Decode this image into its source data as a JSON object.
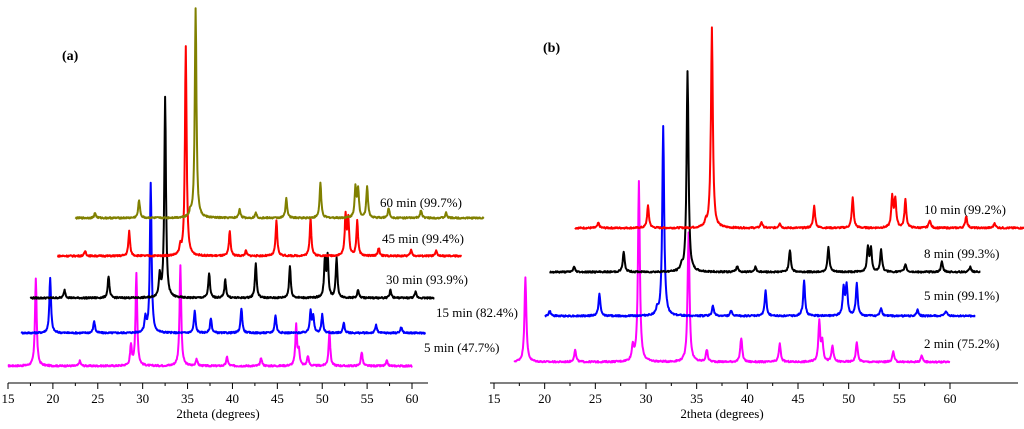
{
  "chart_data": [
    {
      "type": "line",
      "panel_label": "(a)",
      "xlabel": "2theta (degrees)",
      "ylabel": "",
      "xlim": [
        15,
        60
      ],
      "ticks": [
        15,
        20,
        25,
        30,
        35,
        40,
        45,
        50,
        55,
        60
      ],
      "tick_labels": [
        "15",
        "20",
        "25",
        "30",
        "35",
        "40",
        "45",
        "50",
        "55",
        "60"
      ],
      "series": [
        {
          "name": "5 min (47.7%)",
          "label": "5 min (47.7%)",
          "color": "#ff00ff",
          "x_start": 15,
          "x_end": 60,
          "x_shift": 0,
          "y_offset": 0,
          "peaks": [
            [
              18.1,
              88
            ],
            [
              23.0,
              5
            ],
            [
              28.7,
              20
            ],
            [
              29.3,
              92
            ],
            [
              34.2,
              100
            ],
            [
              36.0,
              7
            ],
            [
              39.4,
              9
            ],
            [
              43.2,
              8
            ],
            [
              47.1,
              40
            ],
            [
              47.4,
              15
            ],
            [
              48.4,
              10
            ],
            [
              50.8,
              34
            ],
            [
              54.4,
              14
            ],
            [
              57.2,
              5
            ]
          ]
        },
        {
          "name": "15 min (82.4%)",
          "label": "15 min (82.4%)",
          "color": "#0000ff",
          "x_start": 16.5,
          "x_end": 61.5,
          "x_shift": 1.6,
          "y_offset": 33,
          "peaks": [
            [
              18.1,
              55
            ],
            [
              23.0,
              12
            ],
            [
              28.7,
              15
            ],
            [
              29.3,
              150
            ],
            [
              34.2,
              22
            ],
            [
              36.0,
              15
            ],
            [
              39.4,
              25
            ],
            [
              43.2,
              18
            ],
            [
              47.1,
              22
            ],
            [
              47.4,
              16
            ],
            [
              48.4,
              18
            ],
            [
              50.8,
              10
            ],
            [
              54.4,
              8
            ],
            [
              57.2,
              6
            ]
          ]
        },
        {
          "name": "30 min (93.9%)",
          "label": "30 min (93.9%)",
          "color": "#000000",
          "x_start": 17.5,
          "x_end": 62.5,
          "x_shift": 3.2,
          "y_offset": 68,
          "peaks": [
            [
              18.1,
              8
            ],
            [
              23.0,
              22
            ],
            [
              28.7,
              22
            ],
            [
              29.3,
              200
            ],
            [
              34.2,
              25
            ],
            [
              36.0,
              18
            ],
            [
              39.4,
              35
            ],
            [
              43.2,
              32
            ],
            [
              47.1,
              38
            ],
            [
              47.4,
              40
            ],
            [
              48.4,
              40
            ],
            [
              50.8,
              8
            ],
            [
              54.4,
              8
            ],
            [
              57.2,
              6
            ]
          ]
        },
        {
          "name": "45 min (99.4%)",
          "label": "45 min (99.4%)",
          "color": "#ff0000",
          "x_start": 20.5,
          "x_end": 65.5,
          "x_shift": 5.5,
          "y_offset": 110,
          "peaks": [
            [
              18.1,
              5
            ],
            [
              23.0,
              25
            ],
            [
              28.7,
              8
            ],
            [
              29.3,
              210
            ],
            [
              34.2,
              25
            ],
            [
              36.0,
              5
            ],
            [
              39.4,
              35
            ],
            [
              43.2,
              38
            ],
            [
              47.1,
              40
            ],
            [
              47.4,
              36
            ],
            [
              48.4,
              35
            ],
            [
              50.8,
              8
            ],
            [
              54.4,
              6
            ],
            [
              57.2,
              5
            ]
          ]
        },
        {
          "name": "60 min (99.7%)",
          "label": "60 min (99.7%)",
          "color": "#808000",
          "x_start": 22.5,
          "x_end": 68,
          "x_shift": 6.6,
          "y_offset": 148,
          "peaks": [
            [
              18.1,
              5
            ],
            [
              23.0,
              18
            ],
            [
              28.7,
              5
            ],
            [
              29.3,
              210
            ],
            [
              34.2,
              9
            ],
            [
              36.0,
              5
            ],
            [
              39.4,
              20
            ],
            [
              43.2,
              35
            ],
            [
              47.1,
              30
            ],
            [
              47.4,
              28
            ],
            [
              48.4,
              32
            ],
            [
              50.8,
              10
            ],
            [
              54.4,
              8
            ],
            [
              57.2,
              5
            ]
          ]
        }
      ]
    },
    {
      "type": "line",
      "panel_label": "(b)",
      "xlabel": "2theta (degrees)",
      "ylabel": "",
      "xlim": [
        15,
        60
      ],
      "ticks": [
        15,
        20,
        25,
        30,
        35,
        40,
        45,
        50,
        55,
        60
      ],
      "tick_labels": [
        "15",
        "20",
        "25",
        "30",
        "35",
        "40",
        "45",
        "50",
        "55",
        "60"
      ],
      "series": [
        {
          "name": "2 min (75.2%)",
          "label": "2 min (75.2%)",
          "color": "#ff00ff",
          "x_start": 17,
          "x_end": 60,
          "x_shift": 0,
          "y_offset": 0,
          "peaks": [
            [
              18.1,
              85
            ],
            [
              23.0,
              12
            ],
            [
              28.7,
              15
            ],
            [
              29.3,
              180
            ],
            [
              34.2,
              130
            ],
            [
              36.0,
              12
            ],
            [
              39.4,
              24
            ],
            [
              43.2,
              18
            ],
            [
              47.1,
              40
            ],
            [
              47.4,
              20
            ],
            [
              48.4,
              16
            ],
            [
              50.8,
              20
            ],
            [
              54.4,
              10
            ],
            [
              57.2,
              6
            ]
          ]
        },
        {
          "name": "5 min (99.1%)",
          "label": "5 min (99.1%)",
          "color": "#0000ff",
          "x_start": 20,
          "x_end": 62.5,
          "x_shift": 2.4,
          "y_offset": 46,
          "peaks": [
            [
              18.1,
              5
            ],
            [
              23.0,
              22
            ],
            [
              28.7,
              5
            ],
            [
              29.3,
              190
            ],
            [
              34.2,
              10
            ],
            [
              36.0,
              5
            ],
            [
              39.4,
              25
            ],
            [
              43.2,
              35
            ],
            [
              47.1,
              28
            ],
            [
              47.4,
              30
            ],
            [
              48.4,
              32
            ],
            [
              50.8,
              8
            ],
            [
              54.4,
              6
            ],
            [
              57.2,
              5
            ]
          ]
        },
        {
          "name": "8 min (99.3%)",
          "label": "8 min (99.3%)",
          "color": "#000000",
          "x_start": 20.5,
          "x_end": 63,
          "x_shift": 4.8,
          "y_offset": 90,
          "peaks": [
            [
              18.1,
              5
            ],
            [
              23.0,
              20
            ],
            [
              28.7,
              5
            ],
            [
              29.3,
              200
            ],
            [
              34.2,
              6
            ],
            [
              36.0,
              5
            ],
            [
              39.4,
              22
            ],
            [
              43.2,
              25
            ],
            [
              47.1,
              24
            ],
            [
              47.4,
              22
            ],
            [
              48.4,
              22
            ],
            [
              50.8,
              8
            ],
            [
              54.4,
              10
            ],
            [
              57.2,
              5
            ]
          ]
        },
        {
          "name": "10 min (99.2%)",
          "label": "10 min (99.2%)",
          "color": "#ff0000",
          "x_start": 23,
          "x_end": 68,
          "x_shift": 7.2,
          "y_offset": 134,
          "peaks": [
            [
              18.1,
              5
            ],
            [
              23.0,
              22
            ],
            [
              28.7,
              5
            ],
            [
              29.3,
              200
            ],
            [
              34.2,
              6
            ],
            [
              36.0,
              5
            ],
            [
              39.4,
              22
            ],
            [
              43.2,
              30
            ],
            [
              47.1,
              30
            ],
            [
              47.4,
              28
            ],
            [
              48.4,
              28
            ],
            [
              50.8,
              8
            ],
            [
              54.4,
              12
            ],
            [
              57.2,
              5
            ]
          ]
        }
      ]
    }
  ]
}
